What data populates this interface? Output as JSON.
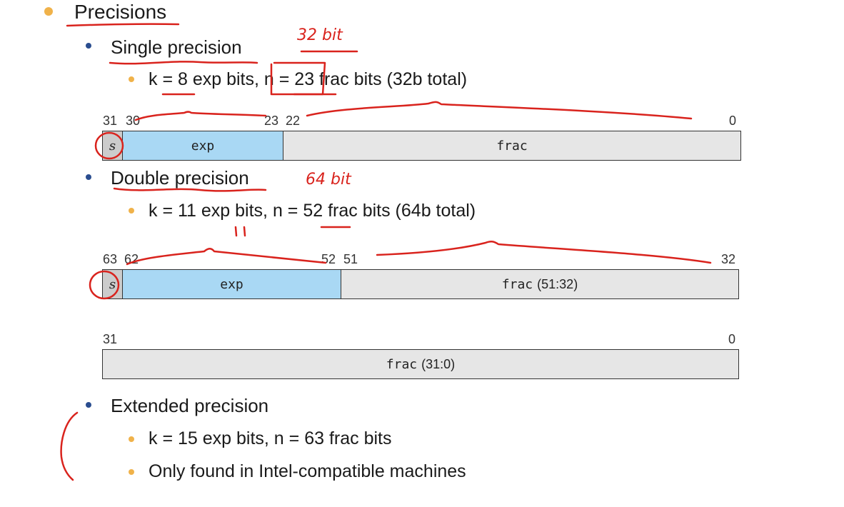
{
  "heading": "Precisions",
  "single": {
    "label": "Single precision",
    "detail": "k = 8 exp bits, n = 23 frac bits (32b total)",
    "bits": {
      "b31": "31",
      "b30": "30",
      "b23": "23",
      "b22": "22",
      "b0": "0"
    },
    "fields": {
      "s": "s",
      "exp": "exp",
      "frac": "frac"
    }
  },
  "double": {
    "label": "Double precision",
    "detail": "k = 11 exp bits, n = 52 frac bits (64b total)",
    "bits": {
      "b63": "63",
      "b62": "62",
      "b52": "52",
      "b51": "51",
      "b32": "32",
      "b31": "31",
      "b0": "0"
    },
    "fields": {
      "s": "s",
      "exp": "exp",
      "frac_hi": "frac",
      "frac_hi_range": "(51:32)",
      "frac_lo": "frac",
      "frac_lo_range": "(31:0)"
    }
  },
  "extended": {
    "label": "Extended precision",
    "detail1": "k = 15 exp bits, n = 63 frac bits",
    "detail2": "Only found in Intel-compatible machines"
  },
  "annotations": {
    "single_note": "32 bit",
    "double_note": "64 bit",
    "exp_note": "11"
  },
  "colors": {
    "ink": "#d9231d",
    "exp": "#a9d8f4",
    "frac": "#e6e6e6",
    "sign": "#cccccc"
  }
}
